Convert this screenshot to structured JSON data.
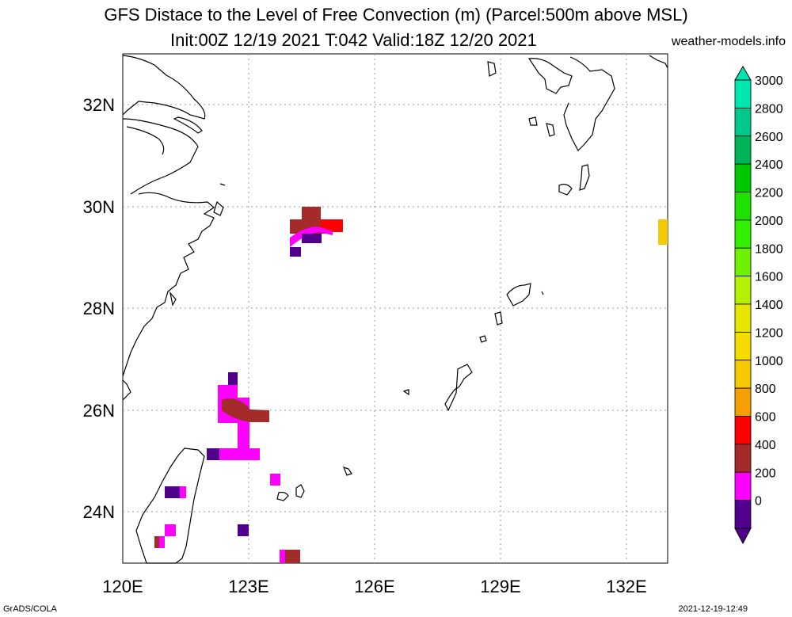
{
  "header": {
    "title_line1": "GFS Distace to the Level of Free Convection (m) (Parcel:500m above MSL)",
    "title_line2": "Init:00Z 12/19 2021 T:042 Valid:18Z 12/20 2021",
    "site": "weather-models.info"
  },
  "footer": {
    "left": "GrADS/COLA",
    "right": "2021-12-19-12:49"
  },
  "map": {
    "lon_ticks": [
      "120E",
      "123E",
      "126E",
      "129E",
      "132E"
    ],
    "lat_ticks": [
      "32N",
      "30N",
      "28N",
      "26N",
      "24N"
    ]
  },
  "colorbar": {
    "labels": [
      "3000",
      "2800",
      "2600",
      "2400",
      "2200",
      "2000",
      "1800",
      "1600",
      "1400",
      "1200",
      "1000",
      "800",
      "600",
      "400",
      "200",
      "0"
    ],
    "colors": [
      "#00e6b0",
      "#00c88c",
      "#00b45a",
      "#00c800",
      "#1ee100",
      "#32f000",
      "#6ef000",
      "#b4f000",
      "#e6e600",
      "#f5dc00",
      "#f5c800",
      "#f5a000",
      "#ff0000",
      "#a52a2a",
      "#ff00ff",
      "#50008c"
    ]
  },
  "field_cells": [
    {
      "value": "400",
      "color": "#a52a2a"
    },
    {
      "value": "200",
      "color": "#ff00ff"
    },
    {
      "value": "0",
      "color": "#50008c"
    },
    {
      "value": "600",
      "color": "#ff0000"
    },
    {
      "value": "1000",
      "color": "#f5c800"
    }
  ]
}
